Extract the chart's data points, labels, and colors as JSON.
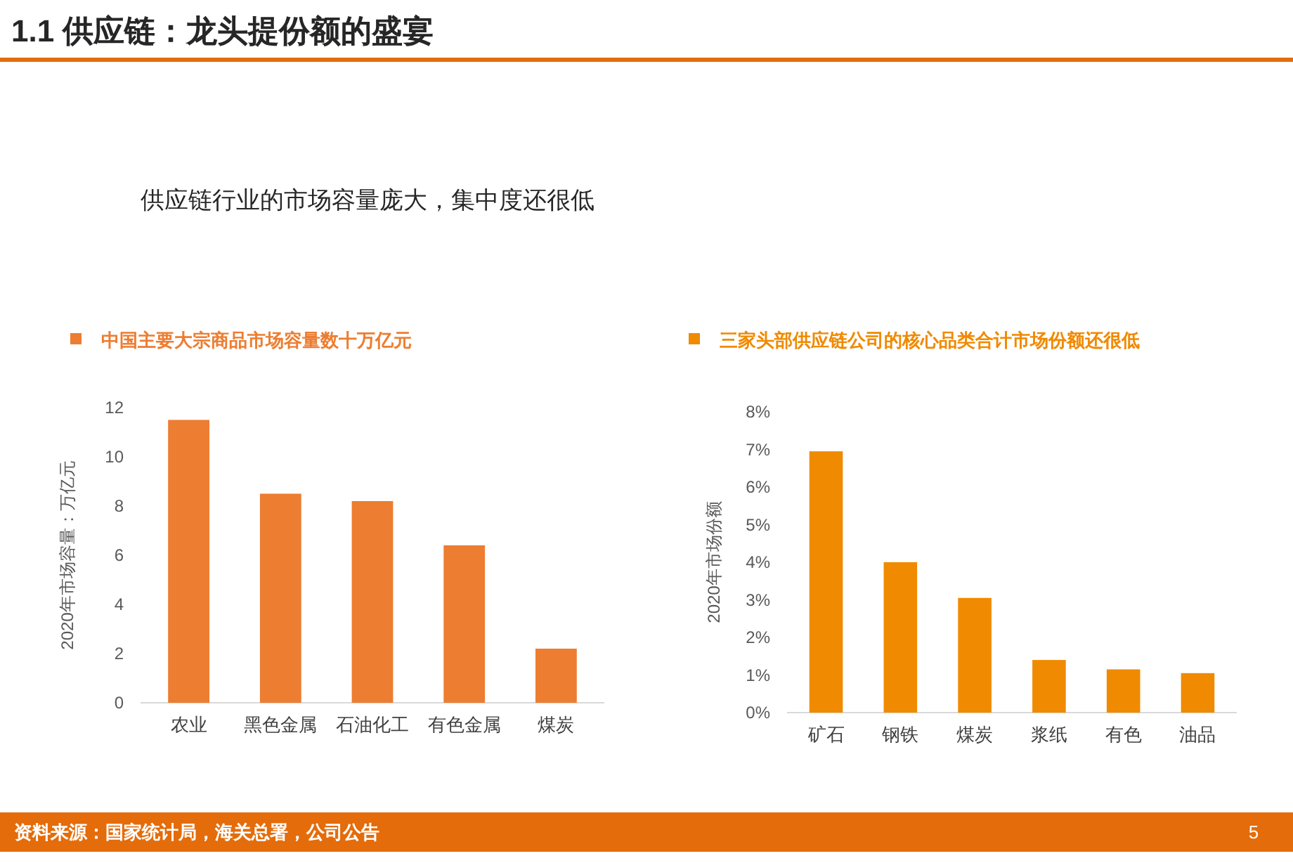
{
  "chart_data": [
    {
      "type": "bar",
      "categories": [
        "农业",
        "黑色金属",
        "石油化工",
        "有色金属",
        "煤炭"
      ],
      "series": [
        {
          "name": "中国主要大宗商品市场容量数十万亿元",
          "color": "#ed7d31",
          "values": [
            11.5,
            8.5,
            8.2,
            6.4,
            2.2
          ]
        }
      ],
      "ylabel": "2020年市场容量：万亿元",
      "ylim": [
        0,
        12
      ],
      "yticks": [
        0,
        2,
        4,
        6,
        8,
        10,
        12
      ],
      "grid": false,
      "legend": "top",
      "annotations": [
        "1.1 供应链：龙头提份额的盛宴",
        "供应链行业的市场容量庞大，集中度还很低",
        "资料来源：国家统计局，海关总署，公司公告",
        "5"
      ]
    },
    {
      "type": "bar",
      "categories": [
        "矿石",
        "钢铁",
        "煤炭",
        "浆纸",
        "有色",
        "油品"
      ],
      "series": [
        {
          "name": "三家头部供应链公司的核心品类合计市场份额还很低",
          "color": "#f08a00",
          "values": [
            6.95,
            4.0,
            3.05,
            1.4,
            1.15,
            1.05
          ]
        }
      ],
      "ylabel": "2020年市场份额",
      "ylim": [
        0,
        8
      ],
      "yticks": [
        {
          "value": 0,
          "label": "0%"
        },
        {
          "value": 1,
          "label": "1%"
        },
        {
          "value": 2,
          "label": "2%"
        },
        {
          "value": 3,
          "label": "3%"
        },
        {
          "value": 4,
          "label": "4%"
        },
        {
          "value": 5,
          "label": "5%"
        },
        {
          "value": 6,
          "label": "6%"
        },
        {
          "value": 7,
          "label": "7%"
        },
        {
          "value": 8,
          "label": "8%"
        }
      ],
      "grid": false,
      "legend": "top"
    }
  ]
}
